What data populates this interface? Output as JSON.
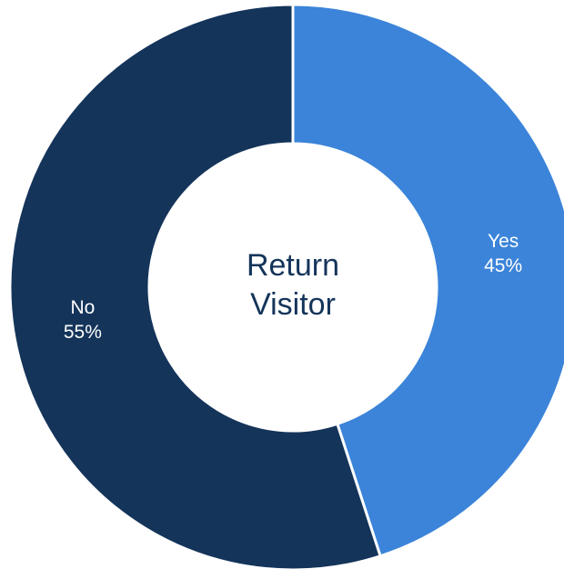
{
  "chart_data": {
    "type": "donut",
    "center_label": "Return Visitor",
    "categories": [
      "Yes",
      "No"
    ],
    "values": [
      45,
      55
    ],
    "value_labels": [
      "45%",
      "55%"
    ],
    "colors": [
      "#3b84d9",
      "#14345a"
    ]
  }
}
